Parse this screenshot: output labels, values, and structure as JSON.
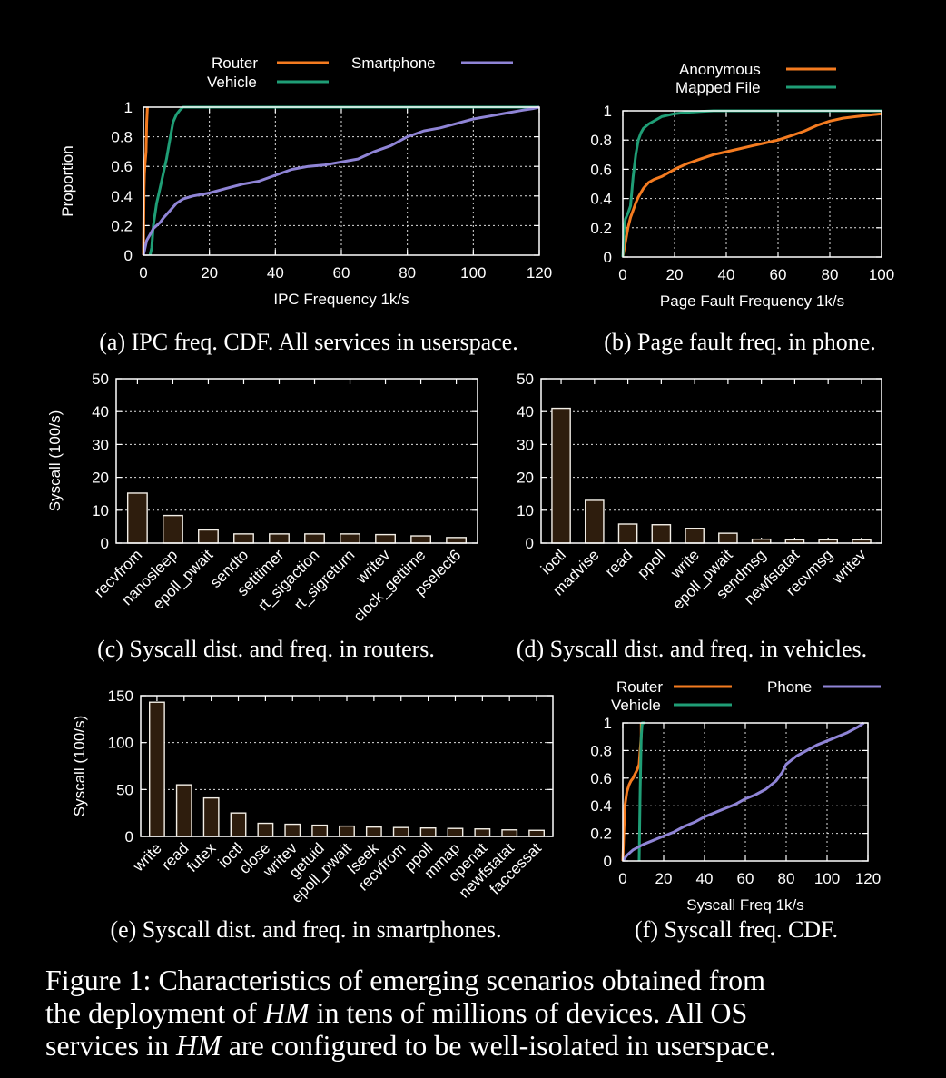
{
  "colors": {
    "router": "#f47b20",
    "vehicle": "#1f9e76",
    "phone": "#8f84d6",
    "bar_fill": "#2e1d0d"
  },
  "captions": {
    "a": "(a) IPC freq. CDF. All services in userspace.",
    "b": "(b) Page fault freq. in phone.",
    "c": "(c) Syscall dist. and freq. in routers.",
    "d": "(d) Syscall dist. and freq. in vehicles.",
    "e": "(e) Syscall dist. and freq. in smartphones.",
    "f": "(f) Syscall freq. CDF.",
    "figure_1": "Figure 1: Characteristics of emerging scenarios obtained from",
    "figure_2a": "the deployment of ",
    "figure_2b": "HM",
    "figure_2c": " in tens of millions of devices. All OS",
    "figure_3a": "services in ",
    "figure_3b": "HM",
    "figure_3c": " are configured to be well-isolated in userspace."
  },
  "chart_data": [
    {
      "id": "a",
      "type": "line",
      "xlabel": "IPC Frequency 1k/s",
      "ylabel": "Proportion",
      "xlim": [
        0,
        120
      ],
      "ylim": [
        0,
        1
      ],
      "xticks": [
        0,
        20,
        40,
        60,
        80,
        100,
        120
      ],
      "yticks": [
        0,
        0.2,
        0.4,
        0.6,
        0.8,
        1
      ],
      "grid": true,
      "legend": "top",
      "series": [
        {
          "name": "Router",
          "color": "#f47b20",
          "x": [
            0,
            0.1,
            0.2,
            0.3,
            0.5,
            0.8,
            1.0,
            1.2
          ],
          "y": [
            0,
            0.25,
            0.45,
            0.55,
            0.62,
            0.7,
            0.9,
            1.0
          ]
        },
        {
          "name": "Vehicle",
          "color": "#1f9e76",
          "x": [
            2,
            2.5,
            3,
            4,
            5,
            6,
            7,
            8,
            9,
            10,
            11,
            12,
            13,
            14,
            120
          ],
          "y": [
            0,
            0.05,
            0.2,
            0.35,
            0.45,
            0.55,
            0.65,
            0.78,
            0.9,
            0.95,
            0.98,
            1.0,
            1.0,
            1.0,
            1.0
          ]
        },
        {
          "name": "Smartphone",
          "color": "#8f84d6",
          "x": [
            0,
            0.5,
            1,
            2,
            3,
            4,
            5,
            6,
            8,
            10,
            12,
            15,
            20,
            25,
            30,
            35,
            40,
            45,
            50,
            55,
            60,
            65,
            70,
            75,
            80,
            85,
            90,
            95,
            100,
            105,
            110,
            115,
            118,
            120
          ],
          "y": [
            0,
            0.05,
            0.1,
            0.14,
            0.18,
            0.2,
            0.22,
            0.25,
            0.3,
            0.35,
            0.38,
            0.4,
            0.42,
            0.45,
            0.48,
            0.5,
            0.54,
            0.58,
            0.6,
            0.61,
            0.63,
            0.65,
            0.7,
            0.74,
            0.8,
            0.84,
            0.86,
            0.89,
            0.92,
            0.94,
            0.96,
            0.98,
            0.99,
            1.0
          ]
        }
      ]
    },
    {
      "id": "b",
      "type": "line",
      "xlabel": "Page Fault Frequency 1k/s",
      "ylabel": "",
      "xlim": [
        0,
        100
      ],
      "ylim": [
        0,
        1
      ],
      "xticks": [
        0,
        20,
        40,
        60,
        80,
        100
      ],
      "yticks": [
        0,
        0.2,
        0.4,
        0.6,
        0.8,
        1
      ],
      "grid": true,
      "legend": "top",
      "series": [
        {
          "name": "Anonymous",
          "color": "#f47b20",
          "x": [
            0,
            0.5,
            1,
            2,
            3,
            4,
            5,
            6,
            8,
            10,
            12,
            15,
            20,
            25,
            30,
            35,
            40,
            45,
            50,
            55,
            60,
            65,
            70,
            75,
            80,
            85,
            90,
            95,
            100
          ],
          "y": [
            0,
            0.05,
            0.1,
            0.2,
            0.27,
            0.32,
            0.37,
            0.41,
            0.47,
            0.51,
            0.53,
            0.55,
            0.6,
            0.64,
            0.67,
            0.7,
            0.72,
            0.74,
            0.76,
            0.78,
            0.8,
            0.83,
            0.86,
            0.9,
            0.93,
            0.95,
            0.96,
            0.97,
            0.98
          ]
        },
        {
          "name": "Mapped File",
          "color": "#1f9e76",
          "x": [
            0,
            0.5,
            1,
            2,
            3,
            4,
            5,
            6,
            7,
            8,
            10,
            12,
            15,
            20,
            25,
            30,
            35,
            40,
            100
          ],
          "y": [
            0,
            0.2,
            0.26,
            0.3,
            0.35,
            0.55,
            0.7,
            0.8,
            0.85,
            0.88,
            0.91,
            0.93,
            0.96,
            0.98,
            0.99,
            0.995,
            1.0,
            1.0,
            1.0
          ]
        }
      ]
    },
    {
      "id": "c",
      "type": "bar",
      "ylabel": "Syscall (100/s)",
      "ylim": [
        0,
        50
      ],
      "yticks": [
        0,
        10,
        20,
        30,
        40,
        50
      ],
      "grid": true,
      "categories": [
        "recvfrom",
        "nanosleep",
        "epoll_pwait",
        "sendto",
        "setitimer",
        "rt_sigaction",
        "rt_sigreturn",
        "writev",
        "clock_gettime",
        "pselect6"
      ],
      "values": [
        15.2,
        8.4,
        4.0,
        2.8,
        2.8,
        2.8,
        2.8,
        2.6,
        2.2,
        1.7
      ]
    },
    {
      "id": "d",
      "type": "bar",
      "ylabel": "",
      "ylim": [
        0,
        50
      ],
      "yticks": [
        0,
        10,
        20,
        30,
        40,
        50
      ],
      "grid": true,
      "categories": [
        "ioctl",
        "madvise",
        "read",
        "ppoll",
        "write",
        "epoll_pwait",
        "sendmsg",
        "newfstatat",
        "recvmsg",
        "writev"
      ],
      "values": [
        41,
        13,
        5.8,
        5.6,
        4.5,
        3.0,
        1.2,
        1.0,
        1.0,
        1.0
      ]
    },
    {
      "id": "e",
      "type": "bar",
      "ylabel": "Syscall (100/s)",
      "ylim": [
        0,
        150
      ],
      "yticks": [
        0,
        50,
        100,
        150
      ],
      "grid": true,
      "categories": [
        "write",
        "read",
        "futex",
        "ioctl",
        "close",
        "writev",
        "getuid",
        "epoll_pwait",
        "lseek",
        "recvfrom",
        "ppoll",
        "mmap",
        "openat",
        "newfstatat",
        "faccessat"
      ],
      "values": [
        143,
        55,
        41,
        25,
        14,
        13,
        12,
        11,
        10,
        9.5,
        9,
        8.5,
        8,
        7,
        6.5
      ]
    },
    {
      "id": "f",
      "type": "line",
      "xlabel": "Syscall Freq 1k/s",
      "ylabel": "",
      "xlim": [
        0,
        120
      ],
      "ylim": [
        0,
        1
      ],
      "xticks": [
        0,
        20,
        40,
        60,
        80,
        100,
        120
      ],
      "yticks": [
        0,
        0.2,
        0.4,
        0.6,
        0.8,
        1
      ],
      "grid": true,
      "legend": "top",
      "series": [
        {
          "name": "Router",
          "color": "#f47b20",
          "x": [
            0,
            0.5,
            1,
            2,
            3,
            4,
            5,
            6,
            7,
            8,
            8.5,
            9,
            9
          ],
          "y": [
            0,
            0.2,
            0.4,
            0.5,
            0.55,
            0.58,
            0.6,
            0.63,
            0.66,
            0.7,
            0.8,
            0.9,
            1.0
          ]
        },
        {
          "name": "Vehicle",
          "color": "#1f9e76",
          "x": [
            8,
            8.5,
            9,
            9.5,
            10,
            10.5,
            11
          ],
          "y": [
            0,
            0.5,
            0.9,
            1.0,
            1.0,
            1.0,
            1.0
          ]
        },
        {
          "name": "Phone",
          "color": "#8f84d6",
          "x": [
            0,
            2,
            5,
            10,
            15,
            20,
            25,
            30,
            35,
            40,
            45,
            50,
            55,
            60,
            65,
            70,
            75,
            78,
            80,
            85,
            90,
            95,
            100,
            105,
            110,
            115,
            118
          ],
          "y": [
            0,
            0.04,
            0.08,
            0.12,
            0.15,
            0.18,
            0.21,
            0.25,
            0.28,
            0.32,
            0.35,
            0.38,
            0.41,
            0.45,
            0.48,
            0.52,
            0.58,
            0.64,
            0.7,
            0.76,
            0.8,
            0.84,
            0.87,
            0.9,
            0.93,
            0.97,
            1.0
          ]
        }
      ]
    }
  ]
}
